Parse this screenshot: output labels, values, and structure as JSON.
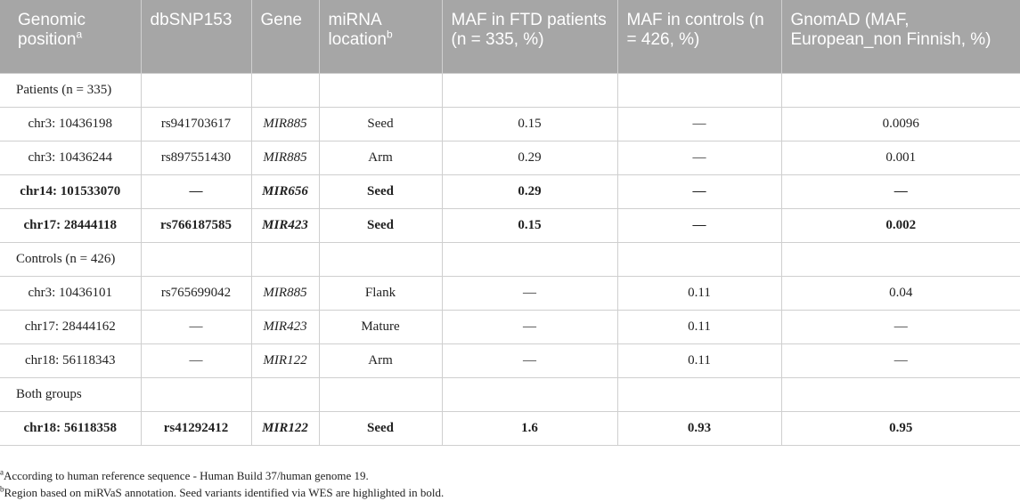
{
  "header": {
    "col1": "Genomic position",
    "col1_sup": "a",
    "col2": "dbSNP153",
    "col3": "Gene",
    "col4": "miRNA location",
    "col4_sup": "b",
    "col5": "MAF in FTD patients (n = 335, %)",
    "col6": "MAF in controls (n = 426, %)",
    "col7": "GnomAD (MAF, European_non Finnish, %)"
  },
  "rows": [
    {
      "group": "Patients (n = 335)"
    },
    {
      "pos": "chr3: 10436198",
      "snp": "rs941703617",
      "gene": "MIR885",
      "loc": "Seed",
      "ftd": "0.15",
      "ctrl": "—",
      "gnomad": "0.0096"
    },
    {
      "pos": "chr3: 10436244",
      "snp": "rs897551430",
      "gene": "MIR885",
      "loc": "Arm",
      "ftd": "0.29",
      "ctrl": "—",
      "gnomad": "0.001"
    },
    {
      "pos": "chr14: 101533070",
      "snp": "—",
      "gene": "MIR656",
      "loc": "Seed",
      "ftd": "0.29",
      "ctrl": "—",
      "gnomad": "—",
      "bold": true
    },
    {
      "pos": "chr17: 28444118",
      "snp": "rs766187585",
      "gene": "MIR423",
      "loc": "Seed",
      "ftd": "0.15",
      "ctrl": "—",
      "gnomad": "0.002",
      "bold": true
    },
    {
      "group": "Controls (n = 426)"
    },
    {
      "pos": "chr3: 10436101",
      "snp": "rs765699042",
      "gene": "MIR885",
      "loc": "Flank",
      "ftd": "—",
      "ctrl": "0.11",
      "gnomad": "0.04"
    },
    {
      "pos": "chr17: 28444162",
      "snp": "—",
      "gene": "MIR423",
      "loc": "Mature",
      "ftd": "—",
      "ctrl": "0.11",
      "gnomad": "—"
    },
    {
      "pos": "chr18: 56118343",
      "snp": "—",
      "gene": "MIR122",
      "loc": "Arm",
      "ftd": "—",
      "ctrl": "0.11",
      "gnomad": "—"
    },
    {
      "group": "Both groups"
    },
    {
      "pos": "chr18: 56118358",
      "snp": "rs41292412",
      "gene": "MIR122",
      "loc": "Seed",
      "ftd": "1.6",
      "ctrl": "0.93",
      "gnomad": "0.95",
      "bold": true
    }
  ],
  "footnotes": [
    {
      "sup": "a",
      "text": "According to human reference sequence - Human Build 37/human genome 19."
    },
    {
      "sup": "b",
      "text": "Region based on miRVaS annotation. Seed variants identified via WES are highlighted in bold."
    }
  ]
}
